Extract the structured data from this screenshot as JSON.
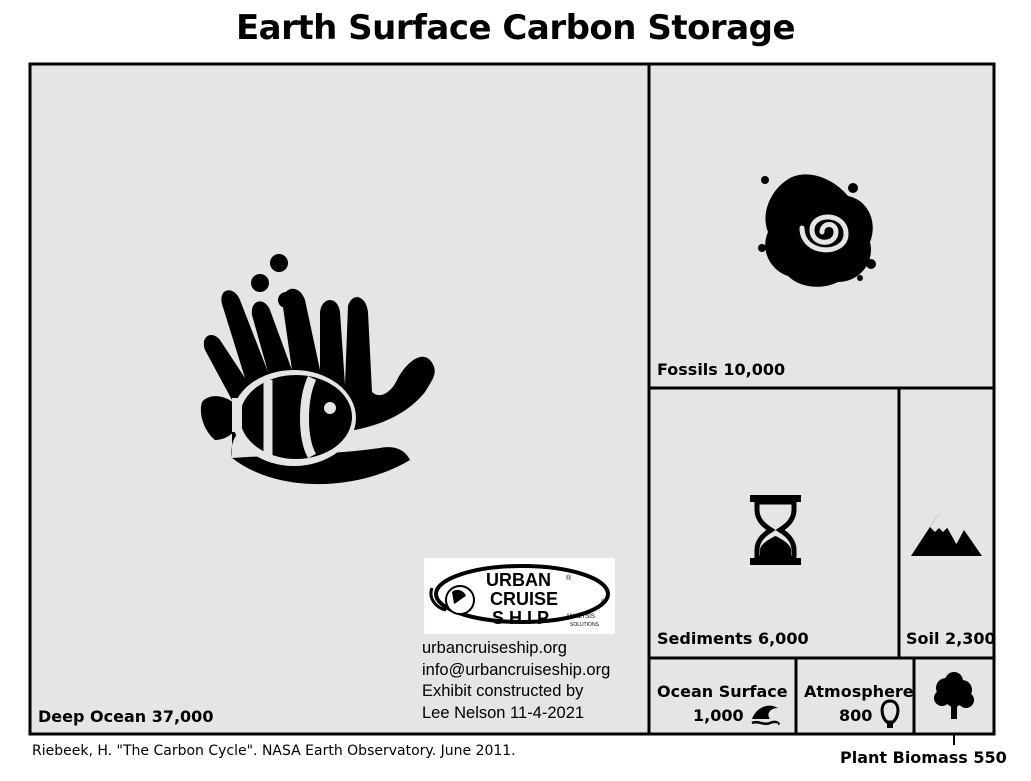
{
  "chart_data": {
    "type": "treemap",
    "title": "Earth Surface Carbon Storage",
    "items": [
      {
        "name": "Deep Ocean",
        "value": 37000,
        "label": "Deep Ocean 37,000",
        "icon": "anemone-clownfish-icon"
      },
      {
        "name": "Fossils",
        "value": 10000,
        "label": "Fossils 10,000",
        "icon": "ammonite-fossil-icon"
      },
      {
        "name": "Sediments",
        "value": 6000,
        "label": "Sediments 6,000",
        "icon": "hourglass-icon"
      },
      {
        "name": "Soil",
        "value": 2300,
        "label": "Soil 2,300",
        "icon": "mountain-icon"
      },
      {
        "name": "Ocean Surface",
        "value": 1000,
        "label_line1": "Ocean Surface",
        "label_line2": "1,000",
        "icon": "wave-icon"
      },
      {
        "name": "Atmosphere",
        "value": 800,
        "label_line1": "Atmosphere",
        "label_line2": "800",
        "icon": "balloon-icon"
      },
      {
        "name": "Plant Biomass",
        "value": 550,
        "label": "Plant Biomass 550",
        "icon": "tree-icon"
      }
    ],
    "tile_color": "#e6e4e5"
  },
  "logo": {
    "name_line1": "URBAN",
    "name_line2": "CRUISE",
    "name_line3": "SHIP",
    "sub1": "ANALYSIS",
    "sub2": "SOLUTIONS",
    "registered": "®"
  },
  "credits": {
    "line1": "urbancruiseship.org",
    "line2": "info@urbancruiseship.org",
    "line3": "Exhibit constructed by",
    "line4": "Lee Nelson 11-4-2021"
  },
  "source": "Riebeek, H. \"The Carbon Cycle\". NASA Earth Observatory. June 2011."
}
